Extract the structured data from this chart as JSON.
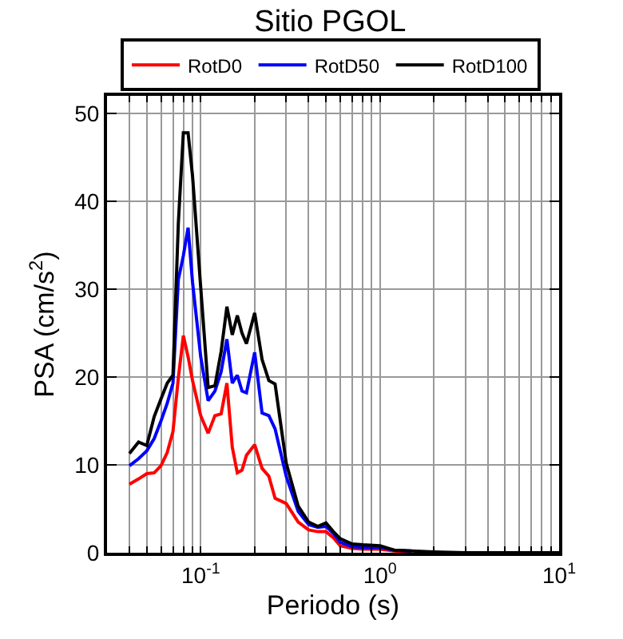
{
  "chart_data": {
    "type": "line",
    "title": "Sitio PGOL",
    "xlabel": "Periodo (s)",
    "ylabel": "PSA (cm/s$^{2}$)",
    "log": "x",
    "grid": true,
    "legend": "top",
    "marker": "none",
    "line_style": "solid",
    "x": [
      0.04,
      0.045,
      0.05,
      0.055,
      0.06,
      0.065,
      0.07,
      0.075,
      0.08,
      0.085,
      0.09,
      0.1,
      0.11,
      0.12,
      0.13,
      0.14,
      0.15,
      0.16,
      0.17,
      0.18,
      0.2,
      0.22,
      0.24,
      0.26,
      0.3,
      0.35,
      0.4,
      0.45,
      0.5,
      0.55,
      0.6,
      0.7,
      0.8,
      1,
      1.2,
      1.5,
      2,
      3,
      5,
      10
    ],
    "xlim": [
      0.03,
      10
    ],
    "ylim": [
      0,
      52
    ],
    "xticks": [
      {
        "value": 0.04,
        "label": null
      },
      {
        "value": 0.05,
        "label": null
      },
      {
        "value": 0.06,
        "label": null
      },
      {
        "value": 0.07,
        "label": null
      },
      {
        "value": 0.08,
        "label": null
      },
      {
        "value": 0.09,
        "label": null
      },
      {
        "value": 0.1,
        "label": "10$^{-1}$"
      },
      {
        "value": 0.2,
        "label": null
      },
      {
        "value": 0.3,
        "label": null
      },
      {
        "value": 0.4,
        "label": null
      },
      {
        "value": 0.5,
        "label": null
      },
      {
        "value": 0.6,
        "label": null
      },
      {
        "value": 0.7,
        "label": null
      },
      {
        "value": 0.8,
        "label": null
      },
      {
        "value": 0.9,
        "label": null
      },
      {
        "value": 1,
        "label": "10$^{0}$"
      },
      {
        "value": 2,
        "label": null
      },
      {
        "value": 3,
        "label": null
      },
      {
        "value": 4,
        "label": null
      },
      {
        "value": 5,
        "label": null
      },
      {
        "value": 6,
        "label": null
      },
      {
        "value": 7,
        "label": null
      },
      {
        "value": 8,
        "label": null
      },
      {
        "value": 9,
        "label": null
      },
      {
        "value": 10,
        "label": "10$^{1}$"
      }
    ],
    "yticks": [
      0,
      10,
      20,
      30,
      40,
      50
    ],
    "series": [
      {
        "name": "RotD0",
        "color": "#ff0000",
        "values": [
          7.8,
          8.4,
          9.0,
          9.1,
          9.9,
          11.4,
          13.8,
          19.9,
          24.7,
          22.3,
          19.6,
          15.6,
          13.6,
          15.6,
          15.8,
          19.3,
          12,
          9.1,
          9.4,
          11.1,
          12.3,
          9.6,
          8.7,
          6.2,
          5.6,
          3.5,
          2.6,
          2.4,
          2.4,
          1.7,
          0.8,
          0.5,
          0.4,
          0.4,
          0.2,
          0.1,
          null,
          null,
          null,
          null
        ]
      },
      {
        "name": "RotD50",
        "color": "#0000ff",
        "values": [
          9.9,
          10.7,
          11.6,
          13,
          15,
          17,
          19.3,
          31.1,
          33.8,
          37,
          30.8,
          22.3,
          17.3,
          18.4,
          20.6,
          24.3,
          19.3,
          20.2,
          18.4,
          18.2,
          22.8,
          15.9,
          15.6,
          14.1,
          8.7,
          4.7,
          3.2,
          2.9,
          3,
          2.2,
          1.2,
          0.7,
          0.6,
          0.6,
          0.3,
          0.2,
          null,
          null,
          null,
          null
        ]
      },
      {
        "name": "RotD100",
        "color": "#000000",
        "values": [
          11.3,
          12.6,
          12.2,
          15.5,
          17.5,
          19.3,
          20.2,
          37.5,
          47.8,
          47.8,
          42.9,
          30.2,
          18.8,
          19,
          22.9,
          28,
          24.8,
          27,
          25,
          23.8,
          27.3,
          22,
          19.6,
          19.2,
          10.2,
          5.3,
          3.5,
          3,
          3.4,
          2.4,
          1.6,
          1,
          0.9,
          0.8,
          0.3,
          0.2,
          0.1,
          0,
          0,
          0
        ]
      }
    ]
  }
}
